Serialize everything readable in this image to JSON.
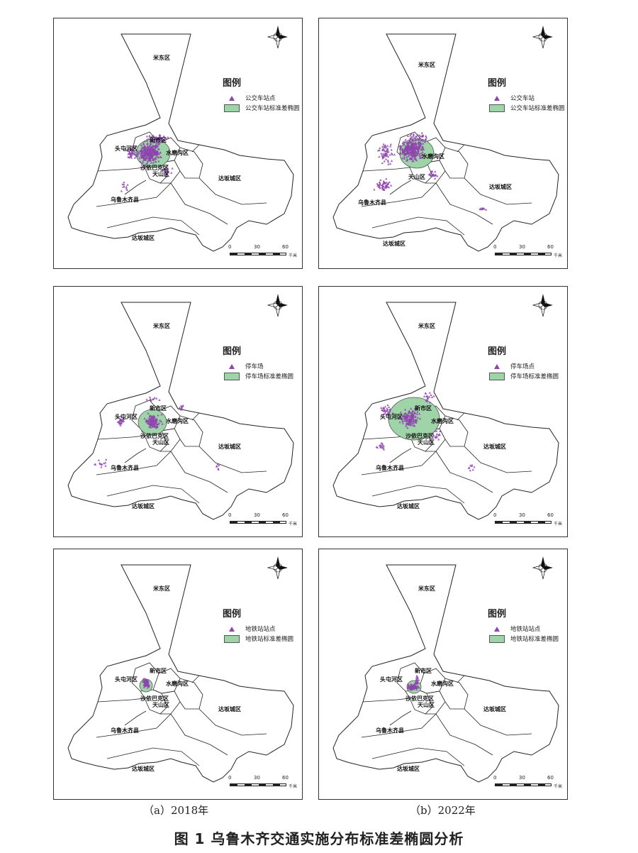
{
  "figure_caption": "图 1   乌鲁木齐交通实施分布标准差椭圆分析",
  "column_captions": [
    "（a）2018年",
    "（b）2022年"
  ],
  "scale": {
    "ticks": [
      "0",
      "30",
      "60"
    ],
    "unit": "千米"
  },
  "legend_title": "图例",
  "districts": {
    "midong": "米东区",
    "xinshi": "新市区",
    "toutunhe": "头屯河区",
    "shuimogou": "水磨沟区",
    "shayibake": "沙依巴克区",
    "tianshan": "天山区",
    "dabancheng": "达坂城区",
    "county": "乌鲁木齐县"
  },
  "colors": {
    "points": "#8e44ad",
    "ellipse": "#9fd3a8",
    "boundary": "#222222"
  },
  "panels": [
    {
      "legend_point": "公交车站点",
      "legend_ellipse": "公交车站标准差椭圆",
      "labels": "full",
      "pts": "bus18",
      "ellipse": {
        "rx": 24,
        "ry": 20
      }
    },
    {
      "legend_point": "公交车站",
      "legend_ellipse": "公交车站标准差椭圆",
      "labels": "partial",
      "pts": "bus22",
      "ellipse": {
        "rx": 24,
        "ry": 21
      }
    },
    {
      "legend_point": "停车场",
      "legend_ellipse": "停车场标准差椭圆",
      "labels": "full",
      "pts": "park18",
      "ellipse": {
        "rx": 20,
        "ry": 18
      }
    },
    {
      "legend_point": "停车场点",
      "legend_ellipse": "停车场标准差椭圆",
      "labels": "full",
      "pts": "park22",
      "ellipse": {
        "rx": 36,
        "ry": 30
      }
    },
    {
      "legend_point": "地铁站站点",
      "legend_ellipse": "地铁站标准差椭圆",
      "labels": "full",
      "pts": "metro18",
      "ellipse": {
        "rx": 9,
        "ry": 9
      }
    },
    {
      "legend_point": "地铁站站点",
      "legend_ellipse": "地铁站标准差椭圆",
      "labels": "full",
      "pts": "metro22",
      "ellipse": {
        "rx": 10,
        "ry": 9
      }
    }
  ]
}
